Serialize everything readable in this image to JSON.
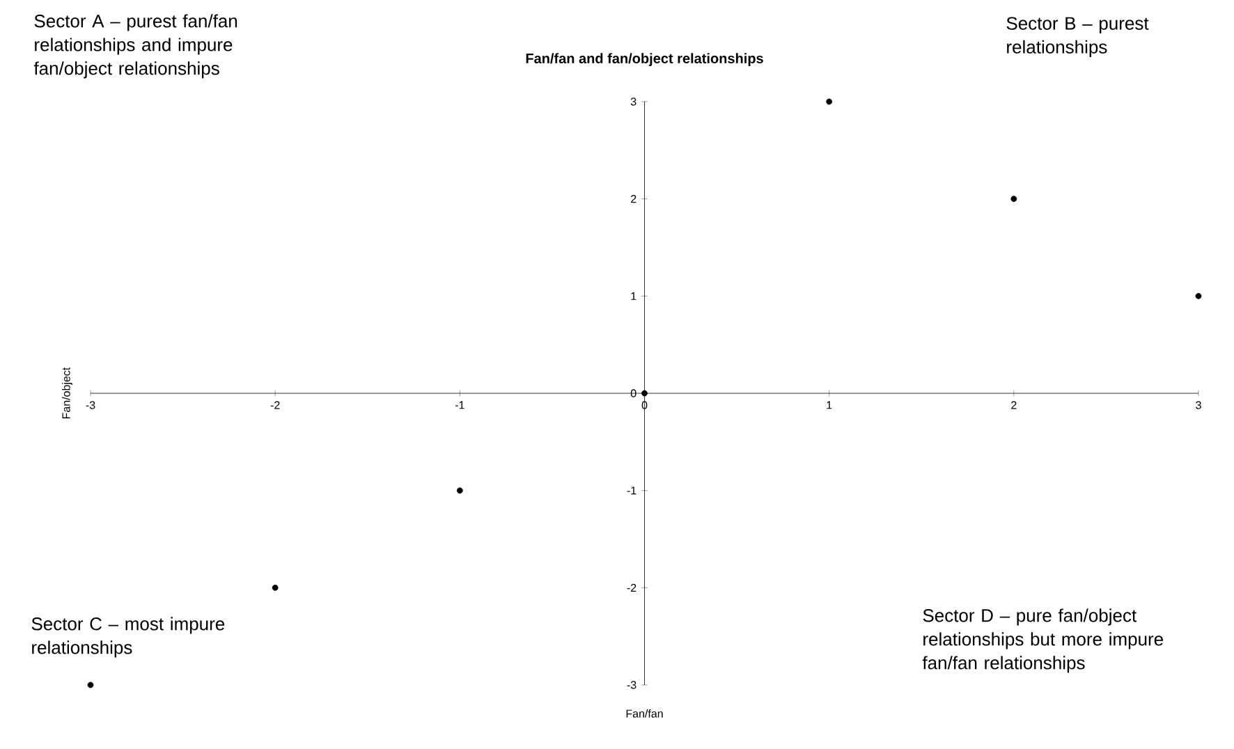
{
  "chart_data": {
    "type": "scatter",
    "title": "Fan/fan and fan/object relationships",
    "xlabel": "Fan/fan",
    "ylabel": "Fan/object",
    "x": [
      -3,
      -2,
      -1,
      0,
      1,
      2,
      3
    ],
    "values": [
      -3,
      -2,
      -1,
      0,
      3,
      2,
      1
    ],
    "color": "#000000",
    "marker": "circle",
    "grid": false,
    "xlim": [
      -3,
      3
    ],
    "ylim": [
      -3,
      3
    ],
    "xticks": [
      -3,
      -2,
      -1,
      0,
      1,
      2,
      3
    ],
    "yticks": [
      -3,
      -2,
      -1,
      0,
      1,
      2,
      3
    ],
    "annotations": [
      "Sector A – purest fan/fan relationships and impure fan/object relationships",
      "Sector B – purest relationships",
      "Sector C – most impure relationships",
      "Sector D – pure fan/object relationships but more impure fan/fan relationships"
    ]
  }
}
